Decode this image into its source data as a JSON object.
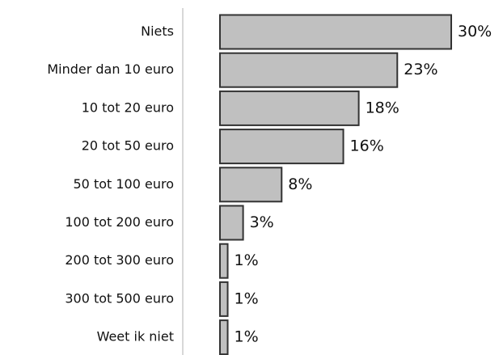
{
  "chart_data": {
    "type": "bar",
    "orientation": "horizontal",
    "categories": [
      "Niets",
      "Minder dan 10 euro",
      "10 tot 20 euro",
      "20 tot 50 euro",
      "50 tot 100 euro",
      "100 tot 200 euro",
      "200 tot 300 euro",
      "300 tot 500 euro",
      "Weet ik niet"
    ],
    "values": [
      30,
      23,
      18,
      16,
      8,
      3,
      1,
      1,
      1
    ],
    "value_labels": [
      "30%",
      "23%",
      "18%",
      "16%",
      "8%",
      "3%",
      "1%",
      "1%",
      "1%"
    ],
    "color": "#c0c0c0"
  }
}
